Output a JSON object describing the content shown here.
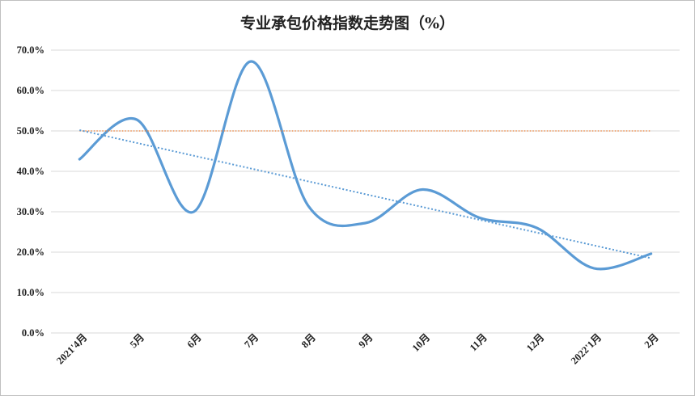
{
  "chart_data": {
    "type": "line",
    "title": "专业承包价格指数走势图（%）",
    "xlabel": "",
    "ylabel": "",
    "categories": [
      "2021'4月",
      "5月",
      "6月",
      "7月",
      "8月",
      "9月",
      "10月",
      "11月",
      "12月",
      "2022'1月",
      "2月"
    ],
    "y_ticks": [
      "0.0%",
      "10.0%",
      "20.0%",
      "30.0%",
      "40.0%",
      "50.0%",
      "60.0%",
      "70.0%"
    ],
    "ylim": [
      0,
      70
    ],
    "grid": true,
    "legend": "none",
    "series": [
      {
        "values": [
          43.0,
          52.8,
          30.0,
          67.2,
          31.5,
          27.2,
          35.5,
          28.5,
          26.0,
          16.0,
          19.6
        ],
        "color": "#5b9bd5",
        "style": "smooth"
      },
      {
        "values": [
          50.0,
          50.0,
          50.0,
          50.0,
          50.0,
          50.0,
          50.0,
          50.0,
          50.0,
          50.0,
          50.0
        ],
        "color": "#ed7d31",
        "style": "dotted"
      },
      {
        "values": [
          50.2,
          47.0,
          43.9,
          40.7,
          37.5,
          34.4,
          31.2,
          28.0,
          24.9,
          21.7,
          18.5
        ],
        "color": "#5b9bd5",
        "style": "dotted-trend"
      }
    ]
  }
}
